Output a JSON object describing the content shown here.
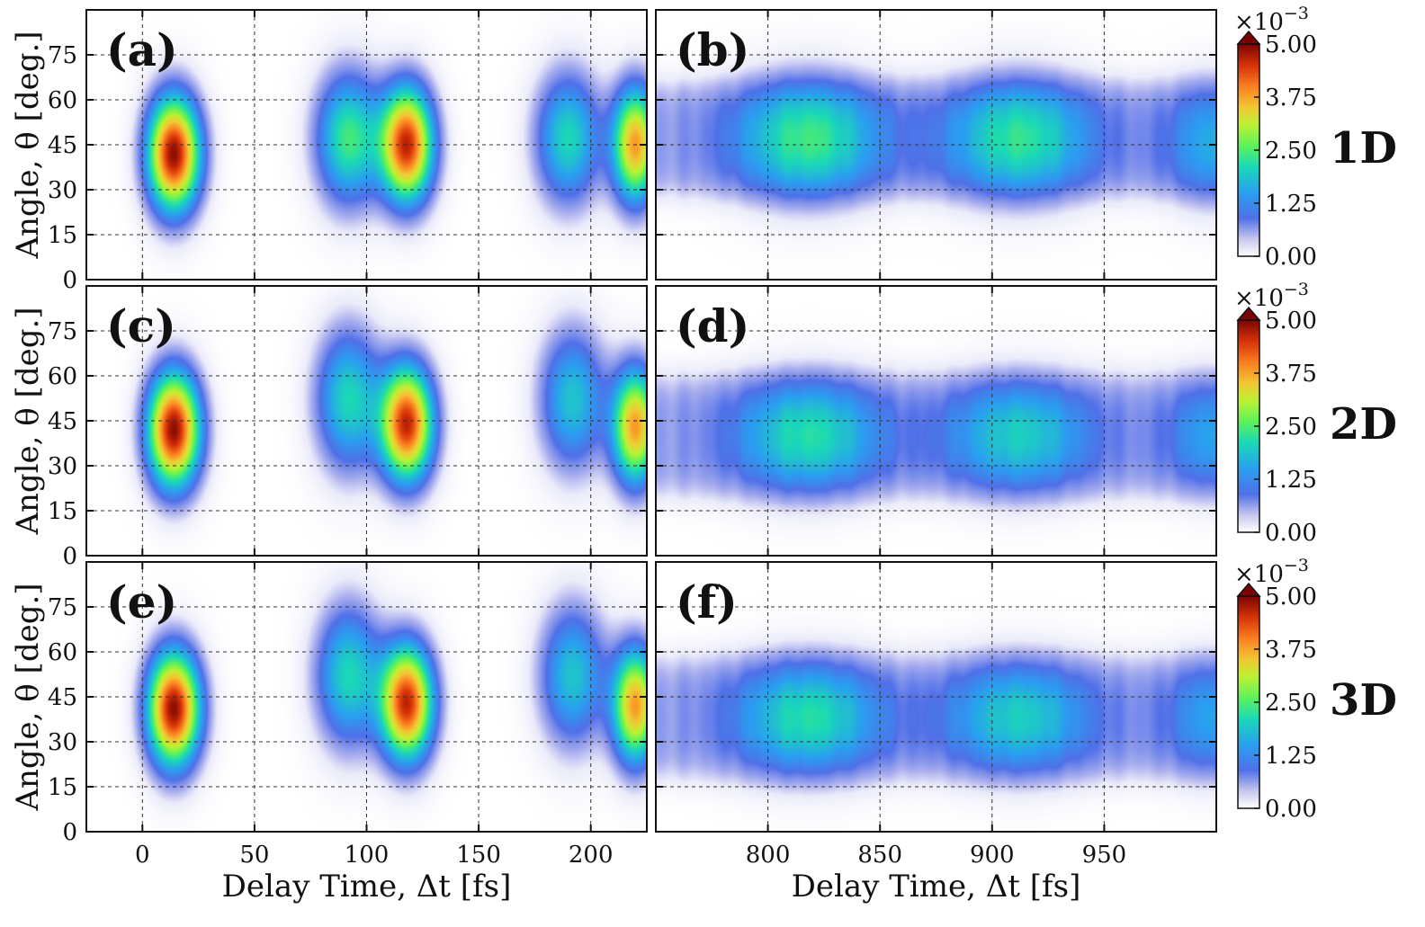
{
  "chart_data": {
    "type": "heatmap",
    "colormap": "turbo (white at zero)",
    "grid": "on (dashed)",
    "y_axis": {
      "label": "Angle, θ [deg.]",
      "range": [
        0,
        90
      ],
      "ticks": [
        "0",
        "15",
        "30",
        "45",
        "60",
        "75"
      ]
    },
    "x_axis_left": {
      "range": [
        -25,
        225
      ],
      "ticks": [
        "0",
        "50",
        "100",
        "150",
        "200"
      ]
    },
    "x_axis_right": {
      "range": [
        750,
        1000
      ],
      "ticks": [
        "800",
        "850",
        "900",
        "950"
      ]
    },
    "x_label": "Delay Time, Δt [fs]",
    "colorbar": {
      "range": [
        0,
        0.005
      ],
      "multiplier": "×10",
      "exponent": "−3",
      "ticks": [
        "0.00",
        "1.25",
        "2.50",
        "3.75",
        "5.00"
      ]
    },
    "rows": [
      {
        "dimension": "1D",
        "left_panel": "(a)",
        "right_panel": "(b)",
        "left_peaks": [
          {
            "t": 14,
            "theta": 42,
            "amp": 4.9,
            "st": 8,
            "sa": 13
          },
          {
            "t": 92,
            "theta": 47,
            "amp": 2.3,
            "st": 10,
            "sa": 15
          },
          {
            "t": 118,
            "theta": 45,
            "amp": 4.6,
            "st": 8,
            "sa": 13
          },
          {
            "t": 190,
            "theta": 47,
            "amp": 2.0,
            "st": 10,
            "sa": 15
          },
          {
            "t": 220,
            "theta": 45,
            "amp": 3.8,
            "st": 7,
            "sa": 13
          }
        ],
        "right_level": {
          "base": 0.6,
          "center": 47,
          "spread": 17
        },
        "right_peaks": [
          {
            "t": 818,
            "theta": 47,
            "amp": 1.7,
            "st": 22,
            "sa": 14
          },
          {
            "t": 912,
            "theta": 47,
            "amp": 1.6,
            "st": 22,
            "sa": 14
          },
          {
            "t": 1000,
            "theta": 45,
            "amp": 1.0,
            "st": 15,
            "sa": 14
          }
        ]
      },
      {
        "dimension": "2D",
        "left_panel": "(c)",
        "right_panel": "(d)",
        "left_peaks": [
          {
            "t": 14,
            "theta": 42,
            "amp": 4.9,
            "st": 8,
            "sa": 13
          },
          {
            "t": 92,
            "theta": 52,
            "amp": 2.0,
            "st": 10,
            "sa": 16
          },
          {
            "t": 118,
            "theta": 44,
            "amp": 4.6,
            "st": 8,
            "sa": 13
          },
          {
            "t": 192,
            "theta": 52,
            "amp": 1.8,
            "st": 10,
            "sa": 16
          },
          {
            "t": 220,
            "theta": 43,
            "amp": 3.8,
            "st": 7,
            "sa": 13
          }
        ],
        "right_level": {
          "base": 0.6,
          "center": 40,
          "spread": 18
        },
        "right_peaks": [
          {
            "t": 818,
            "theta": 40,
            "amp": 1.5,
            "st": 22,
            "sa": 13
          },
          {
            "t": 912,
            "theta": 40,
            "amp": 1.3,
            "st": 22,
            "sa": 13
          },
          {
            "t": 1000,
            "theta": 40,
            "amp": 0.9,
            "st": 15,
            "sa": 13
          }
        ]
      },
      {
        "dimension": "3D",
        "left_panel": "(e)",
        "right_panel": "(f)",
        "left_peaks": [
          {
            "t": 14,
            "theta": 41,
            "amp": 4.9,
            "st": 8,
            "sa": 13
          },
          {
            "t": 92,
            "theta": 52,
            "amp": 2.0,
            "st": 10,
            "sa": 16
          },
          {
            "t": 118,
            "theta": 43,
            "amp": 4.6,
            "st": 8,
            "sa": 13
          },
          {
            "t": 192,
            "theta": 52,
            "amp": 1.8,
            "st": 10,
            "sa": 16
          },
          {
            "t": 220,
            "theta": 42,
            "amp": 3.8,
            "st": 7,
            "sa": 13
          }
        ],
        "right_level": {
          "base": 0.6,
          "center": 38,
          "spread": 18
        },
        "right_peaks": [
          {
            "t": 818,
            "theta": 38,
            "amp": 1.5,
            "st": 22,
            "sa": 13
          },
          {
            "t": 912,
            "theta": 38,
            "amp": 1.3,
            "st": 22,
            "sa": 13
          },
          {
            "t": 1000,
            "theta": 38,
            "amp": 0.9,
            "st": 15,
            "sa": 13
          }
        ]
      }
    ]
  }
}
